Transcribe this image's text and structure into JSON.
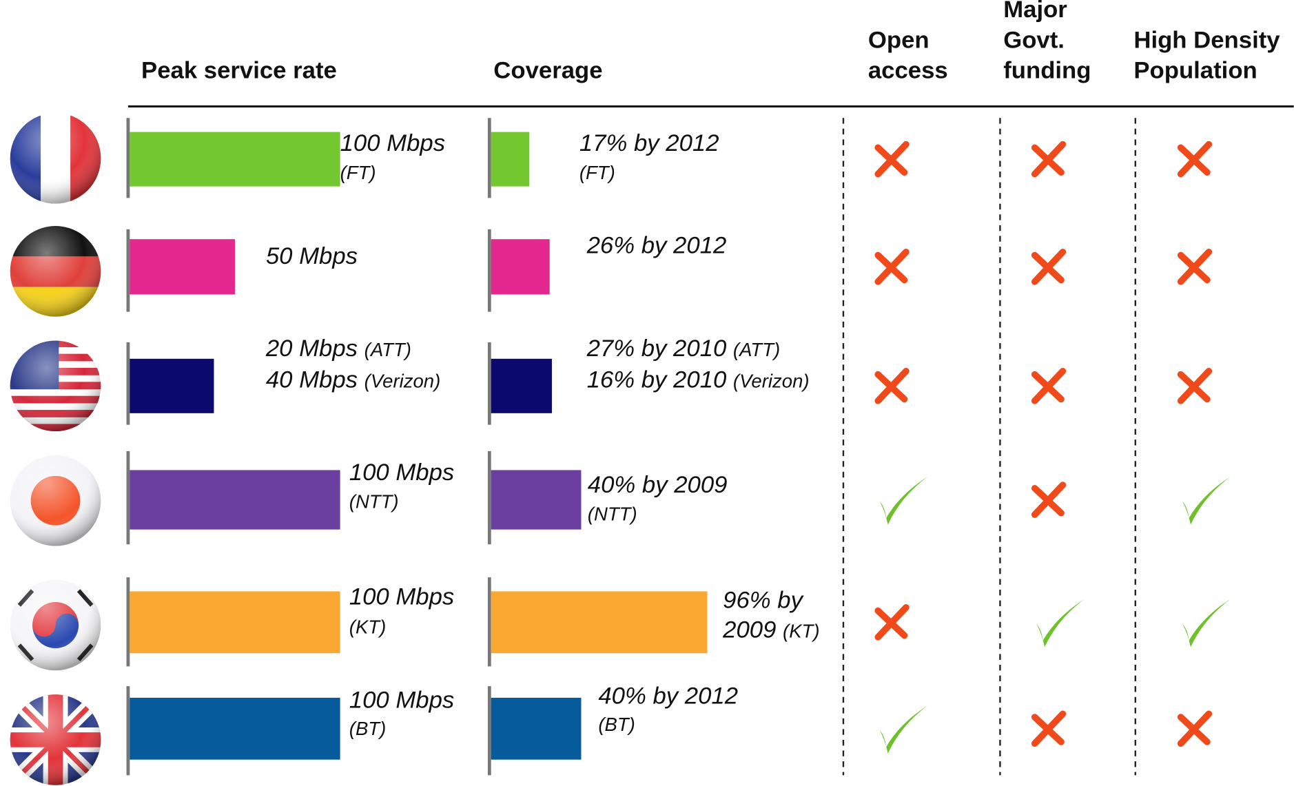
{
  "headers": {
    "peak": [
      "Peak service rate"
    ],
    "coverage": [
      "Coverage"
    ],
    "open": [
      "Open",
      "access"
    ],
    "govt": [
      "Major",
      "Govt.",
      "funding"
    ],
    "density": [
      "High Density",
      "Population"
    ]
  },
  "peak_scale_max": 100,
  "coverage_scale_max": 100,
  "rows": [
    {
      "color": "#72c82e",
      "peak": 100,
      "coverage": 17,
      "peak_lines": [
        {
          "text": "100 Mbps"
        },
        {
          "note": "(FT)"
        }
      ],
      "coverage_lines": [
        {
          "text": "17% by 2012"
        },
        {
          "note": "(FT)"
        }
      ],
      "open": false,
      "govt": false,
      "density": false
    },
    {
      "color": "#e5288f",
      "peak": 50,
      "coverage": 26,
      "peak_lines": [
        {
          "text": "50 Mbps"
        }
      ],
      "coverage_lines": [
        {
          "text": "26% by 2012"
        }
      ],
      "open": false,
      "govt": false,
      "density": false
    },
    {
      "color": "#0a0a6e",
      "peak": 40,
      "coverage": 27,
      "peak_lines": [
        {
          "text": "20 Mbps ",
          "note": "(ATT)"
        },
        {
          "text": "40 Mbps ",
          "note": "(Verizon)"
        }
      ],
      "coverage_lines": [
        {
          "text": "27% by 2010 ",
          "note": "(ATT)"
        },
        {
          "text": "16% by 2010 ",
          "note": "(Verizon)"
        }
      ],
      "open": false,
      "govt": false,
      "density": false
    },
    {
      "color": "#6b3fa0",
      "peak": 100,
      "coverage": 40,
      "peak_lines": [
        {
          "text": "100 Mbps"
        },
        {
          "note": "(NTT)"
        }
      ],
      "coverage_lines": [
        {
          "text": "40% by 2009"
        },
        {
          "note": "(NTT)"
        }
      ],
      "open": true,
      "govt": false,
      "density": true
    },
    {
      "color": "#fba832",
      "peak": 100,
      "coverage": 96,
      "peak_lines": [
        {
          "text": "100 Mbps"
        },
        {
          "note": "(KT)"
        }
      ],
      "coverage_lines": [
        {
          "text": "96% by"
        },
        {
          "text": "2009 ",
          "note": "(KT)"
        }
      ],
      "open": false,
      "govt": true,
      "density": true
    },
    {
      "color": "#065c9a",
      "peak": 100,
      "coverage": 40,
      "peak_lines": [
        {
          "text": "100 Mbps"
        },
        {
          "note": "(BT)"
        }
      ],
      "coverage_lines": [
        {
          "text": "40% by 2012"
        },
        {
          "note": "(BT)"
        }
      ],
      "open": true,
      "govt": false,
      "density": false
    }
  ]
}
